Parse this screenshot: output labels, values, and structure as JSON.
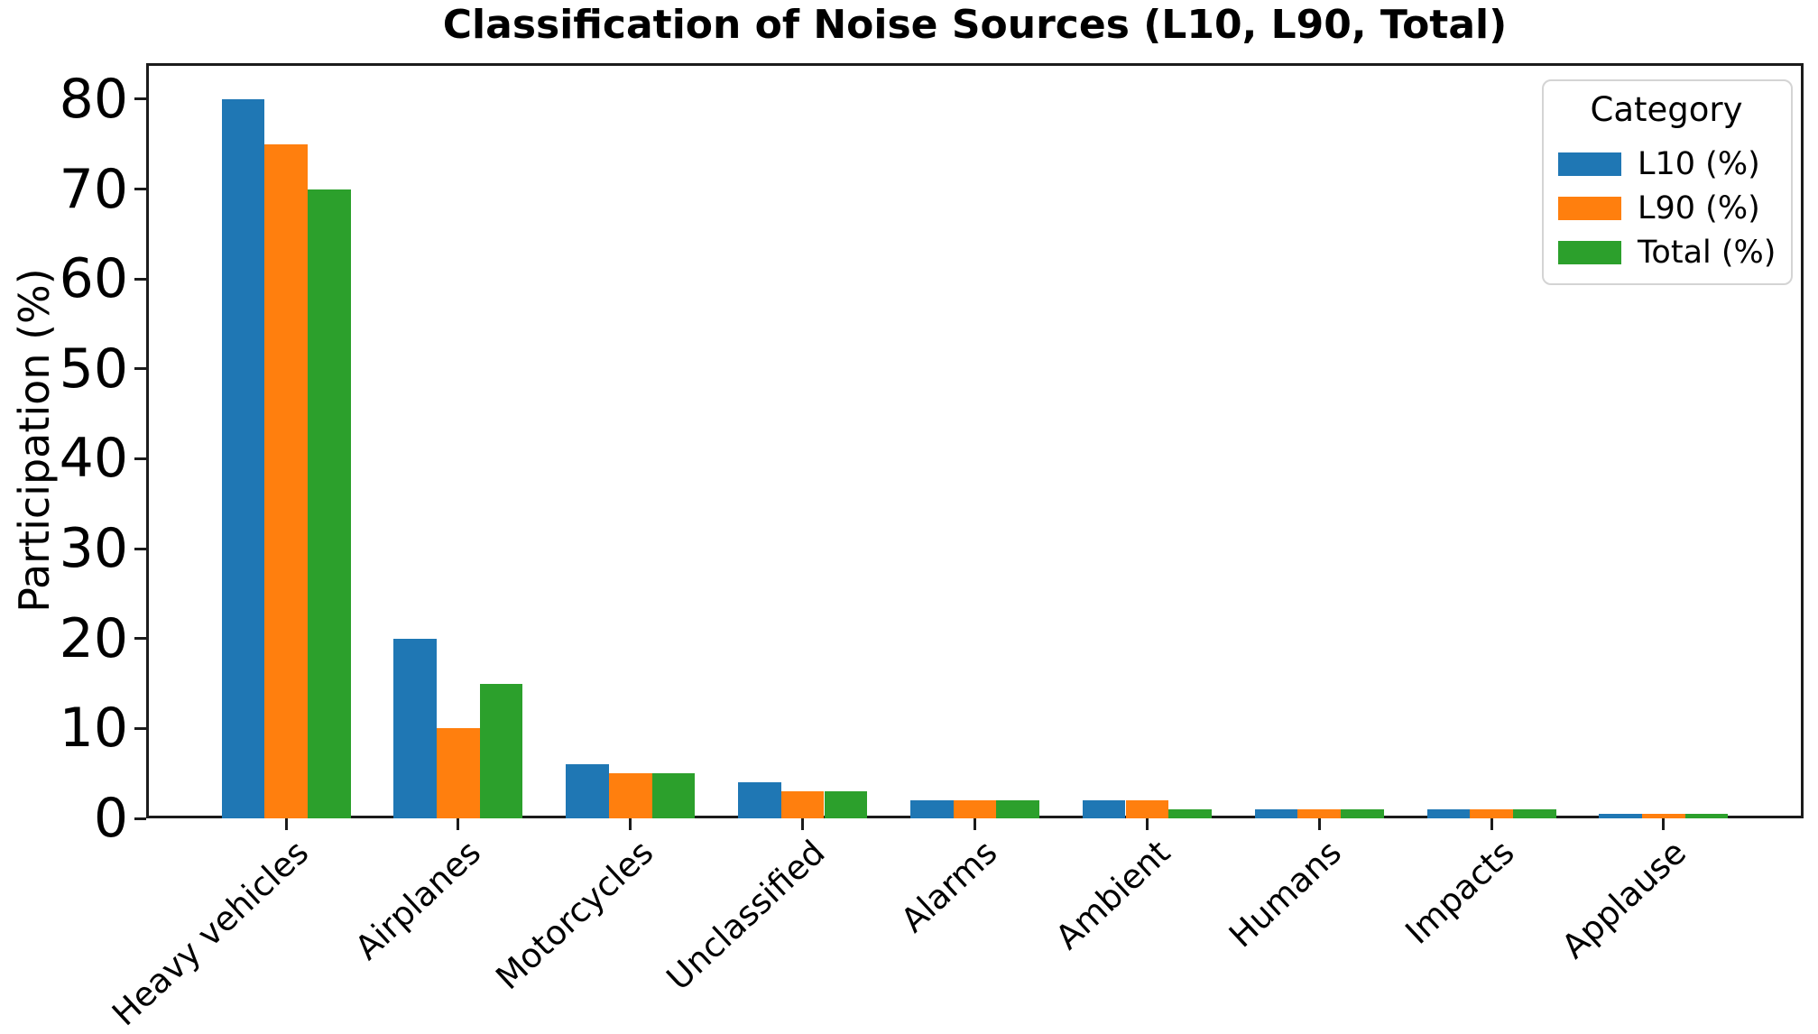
{
  "chart_data": {
    "type": "bar",
    "title": "Classification of Noise Sources (L10, L90, Total)",
    "xlabel": "",
    "ylabel": "Participation (%)",
    "categories": [
      "Heavy vehicles",
      "Airplanes",
      "Motorcycles",
      "Unclassified",
      "Alarms",
      "Ambient",
      "Humans",
      "Impacts",
      "Applause"
    ],
    "series": [
      {
        "name": "L10 (%)",
        "color": "#1f77b4",
        "values": [
          80,
          20,
          6,
          4,
          2,
          2,
          1,
          1,
          0.5
        ]
      },
      {
        "name": "L90 (%)",
        "color": "#ff7f0e",
        "values": [
          75,
          10,
          5,
          3,
          2,
          2,
          1,
          1,
          0.5
        ]
      },
      {
        "name": "Total (%)",
        "color": "#2ca02c",
        "values": [
          70,
          15,
          5,
          3,
          2,
          1,
          1,
          1,
          0.5
        ]
      }
    ],
    "legend_title": "Category",
    "legend_position": "upper right",
    "ylim": [
      0,
      84
    ],
    "yticks": [
      0,
      10,
      20,
      30,
      40,
      50,
      60,
      70,
      80
    ],
    "grid": false,
    "bar_width": 0.25,
    "x_tick_rotation_deg": 45
  }
}
